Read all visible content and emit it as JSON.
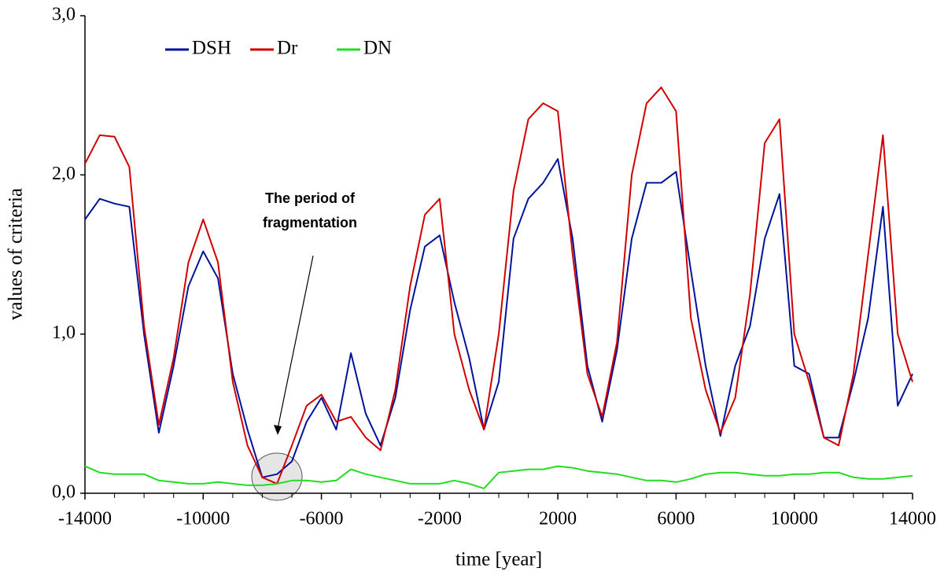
{
  "chart_data": {
    "type": "line",
    "x_label": "time [year]",
    "y_label": "values of criteria",
    "annotation": [
      "The period of",
      "fragmentation"
    ],
    "x": [
      -14000,
      -13500,
      -13000,
      -12500,
      -12000,
      -11500,
      -11000,
      -10500,
      -10000,
      -9500,
      -9000,
      -8500,
      -8000,
      -7500,
      -7000,
      -6500,
      -6000,
      -5500,
      -5000,
      -4500,
      -4000,
      -3500,
      -3000,
      -2500,
      -2000,
      -1500,
      -1000,
      -500,
      0,
      500,
      1000,
      1500,
      2000,
      2500,
      3000,
      3500,
      4000,
      4500,
      5000,
      5500,
      6000,
      6500,
      7000,
      7500,
      8000,
      8500,
      9000,
      9500,
      10000,
      10500,
      11000,
      11500,
      12000,
      12500,
      13000,
      13500,
      14000
    ],
    "series": [
      {
        "name": "DSH",
        "color": "#00139a",
        "values": [
          1.72,
          1.85,
          1.82,
          1.8,
          1.0,
          0.38,
          0.8,
          1.3,
          1.52,
          1.35,
          0.75,
          0.4,
          0.1,
          0.12,
          0.2,
          0.45,
          0.6,
          0.4,
          0.88,
          0.5,
          0.3,
          0.6,
          1.15,
          1.55,
          1.62,
          1.2,
          0.85,
          0.4,
          0.7,
          1.6,
          1.85,
          1.95,
          2.1,
          1.6,
          0.8,
          0.45,
          0.9,
          1.6,
          1.95,
          1.95,
          2.02,
          1.4,
          0.8,
          0.36,
          0.8,
          1.05,
          1.6,
          1.88,
          0.8,
          0.75,
          0.35,
          0.35,
          0.7,
          1.1,
          1.8,
          0.55,
          0.75
        ]
      },
      {
        "name": "Dr",
        "color": "#d10000",
        "values": [
          2.07,
          2.25,
          2.24,
          2.05,
          1.05,
          0.43,
          0.85,
          1.45,
          1.72,
          1.45,
          0.7,
          0.3,
          0.1,
          0.06,
          0.3,
          0.55,
          0.62,
          0.45,
          0.48,
          0.35,
          0.27,
          0.65,
          1.3,
          1.75,
          1.85,
          1.0,
          0.65,
          0.4,
          1.0,
          1.9,
          2.35,
          2.45,
          2.4,
          1.5,
          0.75,
          0.48,
          0.95,
          2.0,
          2.45,
          2.55,
          2.4,
          1.1,
          0.65,
          0.38,
          0.6,
          1.25,
          2.2,
          2.35,
          1.0,
          0.7,
          0.35,
          0.3,
          0.75,
          1.5,
          2.25,
          1.0,
          0.7
        ]
      },
      {
        "name": "DN",
        "color": "#22dd22",
        "values": [
          0.17,
          0.13,
          0.12,
          0.12,
          0.12,
          0.08,
          0.07,
          0.06,
          0.06,
          0.07,
          0.06,
          0.05,
          0.05,
          0.06,
          0.08,
          0.08,
          0.07,
          0.08,
          0.15,
          0.12,
          0.1,
          0.08,
          0.06,
          0.06,
          0.06,
          0.08,
          0.06,
          0.03,
          0.13,
          0.14,
          0.15,
          0.15,
          0.17,
          0.16,
          0.14,
          0.13,
          0.12,
          0.1,
          0.08,
          0.08,
          0.07,
          0.09,
          0.12,
          0.13,
          0.13,
          0.12,
          0.11,
          0.11,
          0.12,
          0.12,
          0.13,
          0.13,
          0.1,
          0.09,
          0.09,
          0.1,
          0.11
        ]
      }
    ],
    "xlim": [
      -14000,
      14000
    ],
    "xticks": [
      -14000,
      -10000,
      -6000,
      -2000,
      2000,
      6000,
      10000,
      14000
    ],
    "ylim": [
      0,
      3
    ],
    "yticks": [
      {
        "value": 0,
        "label": "0,0"
      },
      {
        "value": 1,
        "label": "1,0"
      },
      {
        "value": 2,
        "label": "2,0"
      },
      {
        "value": 3,
        "label": "3,0"
      }
    ],
    "legend": "top-left"
  }
}
